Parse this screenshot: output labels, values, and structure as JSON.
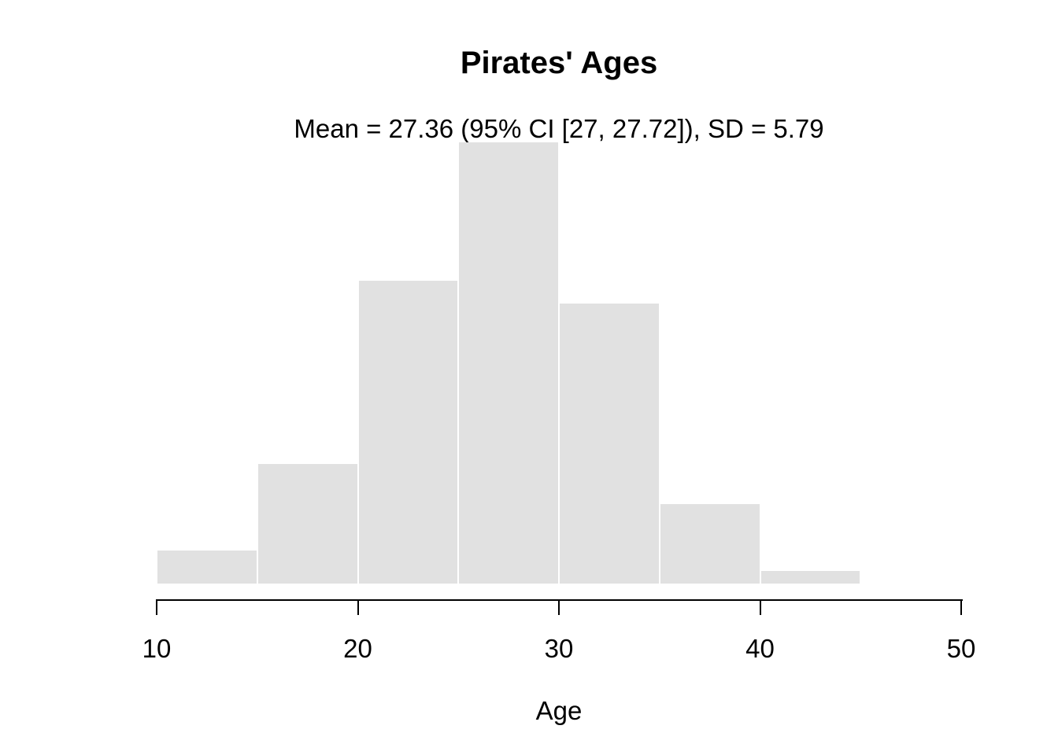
{
  "figure": {
    "title": "Pirates' Ages",
    "subtitle": "Mean = 27.36 (95% CI [27, 27.72]), SD = 5.79",
    "xlabel": "Age",
    "stats_shown": {
      "mean": 27.36,
      "ci_95": [
        27,
        27.72
      ],
      "sd": 5.79
    }
  },
  "colors": {
    "background": "#ffffff",
    "bar_fill": "#e1e1e1",
    "bar_gap": "#ffffff",
    "axis": "#000000",
    "text": "#000000"
  },
  "chart_data": {
    "type": "bar",
    "subtype": "histogram",
    "title": "Pirates' Ages",
    "subtitle": "Mean = 27.36 (95% CI [27, 27.72]), SD = 5.79",
    "xlabel": "Age",
    "ylabel": "",
    "bin_width": 5,
    "bin_edges": [
      10,
      15,
      20,
      25,
      30,
      35,
      40,
      45
    ],
    "values": [
      26,
      95,
      240,
      350,
      222,
      63,
      10
    ],
    "xticks": [
      10,
      20,
      30,
      40,
      50
    ],
    "xtick_labels": [
      "10",
      "20",
      "30",
      "40",
      "50"
    ],
    "xlim": [
      10,
      50
    ],
    "ylim": [
      0,
      350
    ],
    "grid": false,
    "legend": false,
    "y_axis_shown": false
  }
}
